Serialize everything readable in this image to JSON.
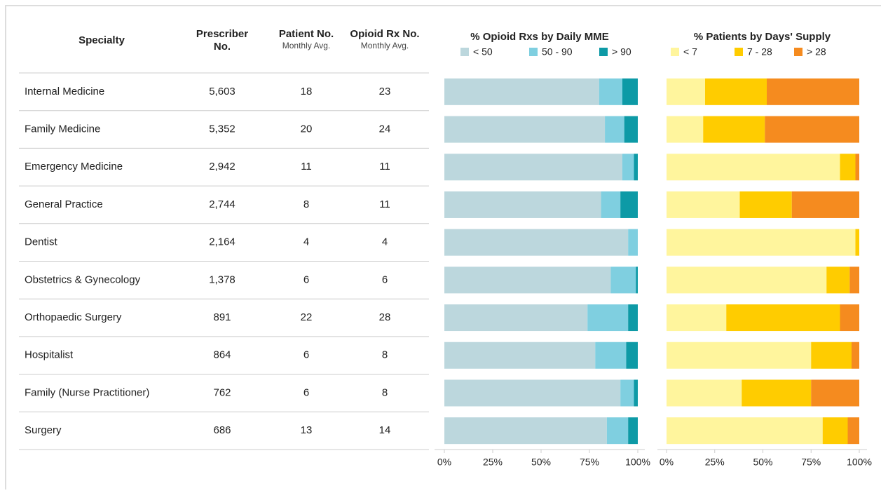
{
  "table": {
    "headers": [
      {
        "title": "Specialty"
      },
      {
        "title": "Prescriber No."
      },
      {
        "title": "Patient No.",
        "subtitle": "Monthly Avg."
      },
      {
        "title": "Opioid Rx No.",
        "subtitle": "Monthly Avg."
      }
    ],
    "rows": [
      [
        "Internal Medicine",
        "5,603",
        "18",
        "23"
      ],
      [
        "Family Medicine",
        "5,352",
        "20",
        "24"
      ],
      [
        "Emergency Medicine",
        "2,942",
        "11",
        "11"
      ],
      [
        "General Practice",
        "2,744",
        "8",
        "11"
      ],
      [
        "Dentist",
        "2,164",
        "4",
        "4"
      ],
      [
        "Obstetrics & Gynecology",
        "1,378",
        "6",
        "6"
      ],
      [
        "Orthopaedic Surgery",
        "891",
        "22",
        "28"
      ],
      [
        "Hospitalist",
        "864",
        "6",
        "8"
      ],
      [
        "Family (Nurse Practitioner)",
        "762",
        "6",
        "8"
      ],
      [
        "Surgery",
        "686",
        "13",
        "14"
      ]
    ]
  },
  "chart_data": [
    {
      "type": "stacked_barh",
      "title": "% Opioid Rxs by Daily MME",
      "xlim": [
        0,
        100
      ],
      "xticks": [
        {
          "value": 0,
          "label": "0%"
        },
        {
          "value": 25,
          "label": "25%"
        },
        {
          "value": 50,
          "label": "50%"
        },
        {
          "value": 75,
          "label": "75%"
        },
        {
          "value": 100,
          "label": "100%"
        }
      ],
      "series": [
        {
          "name": "< 50",
          "color": "#bcd7dd",
          "values": [
            80,
            83,
            92,
            81,
            95,
            86,
            74,
            78,
            91,
            84
          ]
        },
        {
          "name": "50 - 90",
          "color": "#7fcfe0",
          "values": [
            12,
            10,
            6,
            10,
            5,
            13,
            21,
            16,
            7,
            11
          ]
        },
        {
          "name": "> 90",
          "color": "#0d9aa6",
          "values": [
            8,
            7,
            2,
            9,
            0,
            1,
            5,
            6,
            2,
            5
          ]
        }
      ]
    },
    {
      "type": "stacked_barh",
      "title": "% Patients by Days' Supply",
      "xlim": [
        0,
        100
      ],
      "xticks": [
        {
          "value": 0,
          "label": "0%"
        },
        {
          "value": 25,
          "label": "25%"
        },
        {
          "value": 50,
          "label": "50%"
        },
        {
          "value": 75,
          "label": "75%"
        },
        {
          "value": 100,
          "label": "100%"
        }
      ],
      "series": [
        {
          "name": "< 7",
          "color": "#fff59d",
          "values": [
            20,
            19,
            90,
            38,
            98,
            83,
            31,
            75,
            39,
            81
          ]
        },
        {
          "name": "7 - 28",
          "color": "#ffcc00",
          "values": [
            32,
            32,
            8,
            27,
            2,
            12,
            59,
            21,
            36,
            13
          ]
        },
        {
          "name": "> 28",
          "color": "#f58b1f",
          "values": [
            48,
            49,
            2,
            35,
            0,
            5,
            10,
            4,
            25,
            6
          ]
        }
      ]
    }
  ]
}
